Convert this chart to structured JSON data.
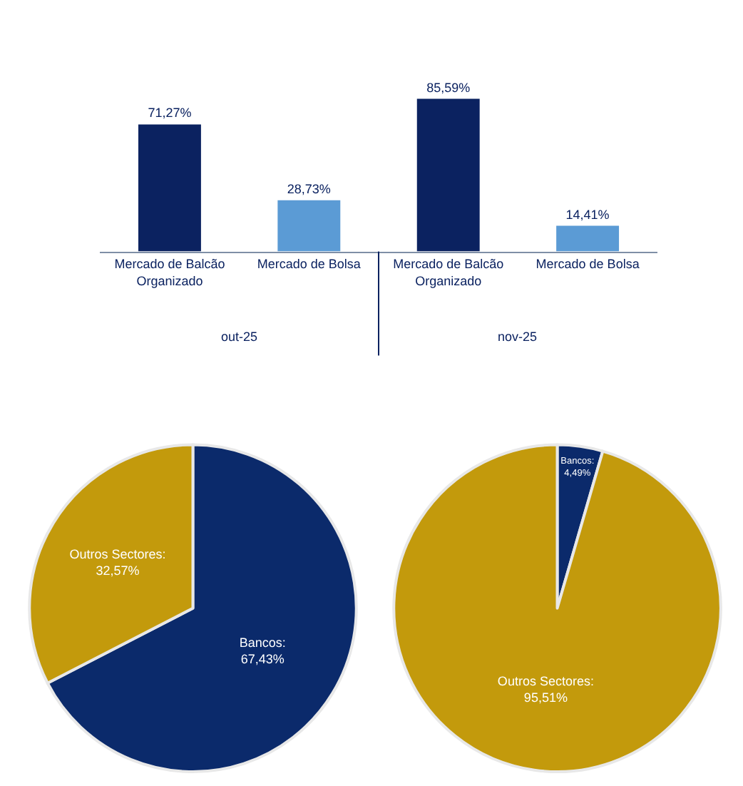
{
  "chart_data": [
    {
      "type": "bar",
      "categories": [
        "Mercado de Balcão Organizado",
        "Mercado de Bolsa",
        "Mercado de Balcão Organizado",
        "Mercado de Bolsa"
      ],
      "values": [
        71.27,
        28.73,
        85.59,
        14.41
      ],
      "colors": [
        "#0b2260",
        "#5b9bd5",
        "#0b2260",
        "#5b9bd5"
      ],
      "value_labels": [
        "71,27%",
        "28,73%",
        "85,59%",
        "14,41%"
      ],
      "annotations": [
        "out-25",
        "nov-25"
      ]
    },
    {
      "type": "pie",
      "values": [
        67.43,
        32.57
      ],
      "colors": [
        "#0b2a6b",
        "#c39a0c"
      ],
      "value_labels": [
        "Bancos: 67,43%",
        "Outros Sectores: 32,57%"
      ]
    },
    {
      "type": "pie",
      "values": [
        4.49,
        95.51
      ],
      "colors": [
        "#0b2a6b",
        "#c39a0c"
      ],
      "value_labels": [
        "Bancos: 4,49%",
        "Outros Sectores: 95,51%"
      ]
    }
  ]
}
